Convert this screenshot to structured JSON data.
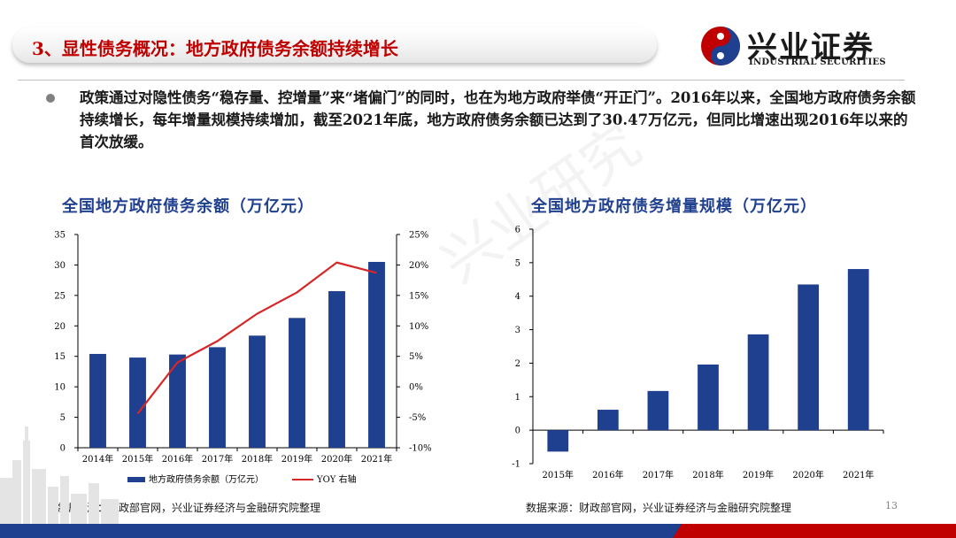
{
  "header": {
    "title": "3、显性债务概况：地方政府债务余额持续增长",
    "brand_cn": "兴业证券",
    "brand_en": "INDUSTRIAL SECURITIES"
  },
  "body": {
    "paragraph": "政策通过对隐性债务“稳存量、控增量”来“堵偏门”的同时，也在为地方政府举债“开正门”。2016年以来，全国地方政府债务余额持续增长，每年增量规模持续增加，截至2021年底，地方政府债务余额已达到了30.47万亿元，但同比增速出现2016年以来的首次放缓。"
  },
  "watermark": "兴业研究",
  "colors": {
    "bar": "#1f3f8f",
    "line": "#d62728",
    "title_red": "#c00000",
    "footer_blue": "#1f3f8f",
    "footer_red": "#c00000"
  },
  "chart_data": [
    {
      "type": "bar",
      "title": "全国地方政府债务余额（万亿元）",
      "categories": [
        "2014年",
        "2015年",
        "2016年",
        "2017年",
        "2018年",
        "2019年",
        "2020年",
        "2021年"
      ],
      "series": [
        {
          "name": "地方政府债务余额（万亿元）",
          "type": "bar",
          "axis": "left",
          "values": [
            15.4,
            14.8,
            15.3,
            16.5,
            18.4,
            21.3,
            25.7,
            30.5
          ]
        },
        {
          "name": "YOY 右轴",
          "type": "line",
          "axis": "right",
          "values": [
            null,
            -4.4,
            4.0,
            7.5,
            12.0,
            15.5,
            20.4,
            18.7
          ]
        }
      ],
      "y_left": {
        "ylim": [
          0,
          35
        ],
        "ticks": [
          "0",
          "5",
          "10",
          "15",
          "20",
          "25",
          "30",
          "35"
        ]
      },
      "y_right": {
        "ylim": [
          -10,
          25
        ],
        "ticks": [
          "-10%",
          "-5%",
          "0%",
          "5%",
          "10%",
          "15%",
          "20%",
          "25%"
        ]
      },
      "legend": "bottom",
      "source": "数据来源：财政部官网，兴业证券经济与金融研究院整理"
    },
    {
      "type": "bar",
      "title": "全国地方政府债务增量规模（万亿元）",
      "categories": [
        "2015年",
        "2016年",
        "2017年",
        "2018年",
        "2019年",
        "2020年",
        "2021年"
      ],
      "values": [
        -0.64,
        0.61,
        1.17,
        1.96,
        2.86,
        4.35,
        4.81
      ],
      "ylim": [
        -1,
        6
      ],
      "ticks": [
        "-1",
        "0",
        "1",
        "2",
        "3",
        "4",
        "5",
        "6"
      ],
      "source": "数据来源：财政部官网，兴业证券经济与金融研究院整理"
    }
  ],
  "page_number": "13"
}
